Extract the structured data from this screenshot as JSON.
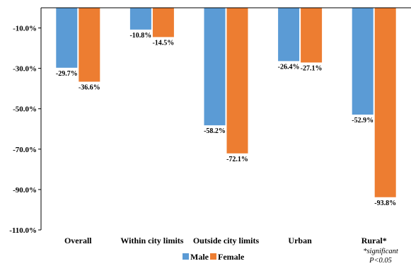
{
  "chart_data": {
    "type": "bar",
    "title": "",
    "xlabel": "",
    "ylabel": "",
    "categories": [
      "Overall",
      "Within city limits",
      "Outside city limits",
      "Urban",
      "Rural*"
    ],
    "series": [
      {
        "name": "Male",
        "values": [
          -29.7,
          -10.8,
          -58.2,
          -26.4,
          -52.9
        ],
        "labels": [
          "-29.7%",
          "-10.8%",
          "-58.2%",
          "-26.4%",
          "-52.9%"
        ],
        "color": "#5b9bd5"
      },
      {
        "name": "Female",
        "values": [
          -36.6,
          -14.5,
          -72.1,
          -27.1,
          -93.8
        ],
        "labels": [
          "-36.6%",
          "-14.5%",
          "-72.1%",
          "-27.1%",
          "-93.8%"
        ],
        "color": "#ed7d31"
      }
    ],
    "ylim": [
      -110,
      0
    ],
    "yticks": [
      -10,
      -30,
      -50,
      -70,
      -90,
      -110
    ],
    "ytick_labels": [
      "-10.0%",
      "-30.0%",
      "-50.0%",
      "-70.0%",
      "-90.0%",
      "-110.0%"
    ],
    "grid": false,
    "legend_position": "bottom",
    "annotation": [
      "*significant",
      "P<0.05"
    ]
  }
}
